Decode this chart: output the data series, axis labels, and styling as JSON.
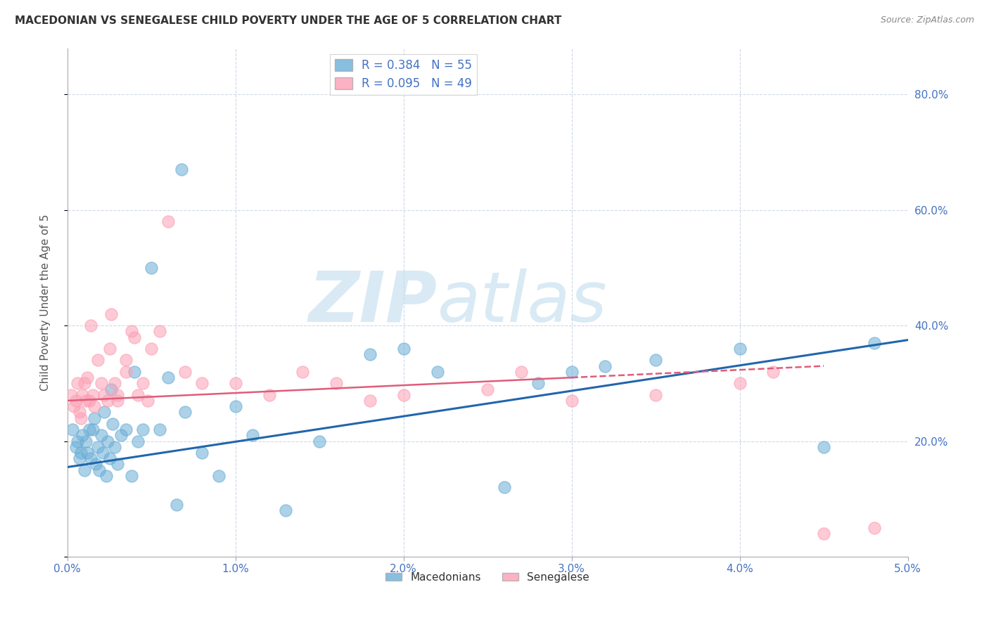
{
  "title": "MACEDONIAN VS SENEGALESE CHILD POVERTY UNDER THE AGE OF 5 CORRELATION CHART",
  "source": "Source: ZipAtlas.com",
  "ylabel": "Child Poverty Under the Age of 5",
  "y_ticks": [
    0.0,
    0.2,
    0.4,
    0.6,
    0.8
  ],
  "y_tick_labels": [
    "",
    "20.0%",
    "40.0%",
    "60.0%",
    "80.0%"
  ],
  "x_range": [
    0.0,
    5.0
  ],
  "y_range": [
    0.0,
    0.88
  ],
  "x_tick_positions": [
    0.0,
    1.0,
    2.0,
    3.0,
    4.0,
    5.0
  ],
  "x_tick_labels": [
    "0.0%",
    "1.0%",
    "2.0%",
    "3.0%",
    "4.0%",
    "5.0%"
  ],
  "legend_label_1": "R = 0.384   N = 55",
  "legend_label_2": "R = 0.095   N = 49",
  "legend_bottom_1": "Macedonians",
  "legend_bottom_2": "Senegalese",
  "color_macedonian": "#6baed6",
  "color_senegalese": "#fc9fb5",
  "color_mac_line": "#2166ac",
  "color_sen_line": "#e05c7a",
  "watermark": "ZIPatlas",
  "mac_trend_x0": 0.0,
  "mac_trend_y0": 0.155,
  "mac_trend_x1": 5.0,
  "mac_trend_y1": 0.375,
  "sen_trend_x0": 0.0,
  "sen_trend_y0": 0.27,
  "sen_trend_x1": 4.5,
  "sen_trend_y1": 0.33,
  "macedonian_x": [
    0.03,
    0.05,
    0.06,
    0.07,
    0.08,
    0.09,
    0.1,
    0.11,
    0.12,
    0.13,
    0.14,
    0.15,
    0.16,
    0.17,
    0.18,
    0.19,
    0.2,
    0.21,
    0.22,
    0.23,
    0.24,
    0.25,
    0.26,
    0.27,
    0.28,
    0.3,
    0.32,
    0.35,
    0.38,
    0.4,
    0.42,
    0.45,
    0.5,
    0.55,
    0.6,
    0.65,
    0.68,
    0.7,
    0.8,
    0.9,
    1.0,
    1.1,
    1.5,
    1.8,
    2.0,
    2.2,
    2.6,
    2.8,
    3.0,
    3.2,
    3.5,
    4.0,
    4.5,
    4.8,
    1.3
  ],
  "macedonian_y": [
    0.22,
    0.19,
    0.2,
    0.17,
    0.18,
    0.21,
    0.15,
    0.2,
    0.18,
    0.22,
    0.17,
    0.22,
    0.24,
    0.16,
    0.19,
    0.15,
    0.21,
    0.18,
    0.25,
    0.14,
    0.2,
    0.17,
    0.29,
    0.23,
    0.19,
    0.16,
    0.21,
    0.22,
    0.14,
    0.32,
    0.2,
    0.22,
    0.5,
    0.22,
    0.31,
    0.09,
    0.67,
    0.25,
    0.18,
    0.14,
    0.26,
    0.21,
    0.2,
    0.35,
    0.36,
    0.32,
    0.12,
    0.3,
    0.32,
    0.33,
    0.34,
    0.36,
    0.19,
    0.37,
    0.08
  ],
  "senegalese_x": [
    0.02,
    0.04,
    0.05,
    0.06,
    0.07,
    0.08,
    0.09,
    0.1,
    0.11,
    0.12,
    0.13,
    0.14,
    0.15,
    0.16,
    0.18,
    0.2,
    0.22,
    0.24,
    0.26,
    0.28,
    0.3,
    0.35,
    0.4,
    0.45,
    0.5,
    0.55,
    0.6,
    0.7,
    0.8,
    1.0,
    1.2,
    1.4,
    1.6,
    1.8,
    2.0,
    2.5,
    3.0,
    3.5,
    4.0,
    4.2,
    4.5,
    4.8,
    0.25,
    0.3,
    0.35,
    0.38,
    0.42,
    0.48,
    2.7
  ],
  "senegalese_y": [
    0.28,
    0.26,
    0.27,
    0.3,
    0.25,
    0.24,
    0.28,
    0.3,
    0.27,
    0.31,
    0.27,
    0.4,
    0.28,
    0.26,
    0.34,
    0.3,
    0.28,
    0.27,
    0.42,
    0.3,
    0.27,
    0.34,
    0.38,
    0.3,
    0.36,
    0.39,
    0.58,
    0.32,
    0.3,
    0.3,
    0.28,
    0.32,
    0.3,
    0.27,
    0.28,
    0.29,
    0.27,
    0.28,
    0.3,
    0.32,
    0.04,
    0.05,
    0.36,
    0.28,
    0.32,
    0.39,
    0.28,
    0.27,
    0.32
  ]
}
